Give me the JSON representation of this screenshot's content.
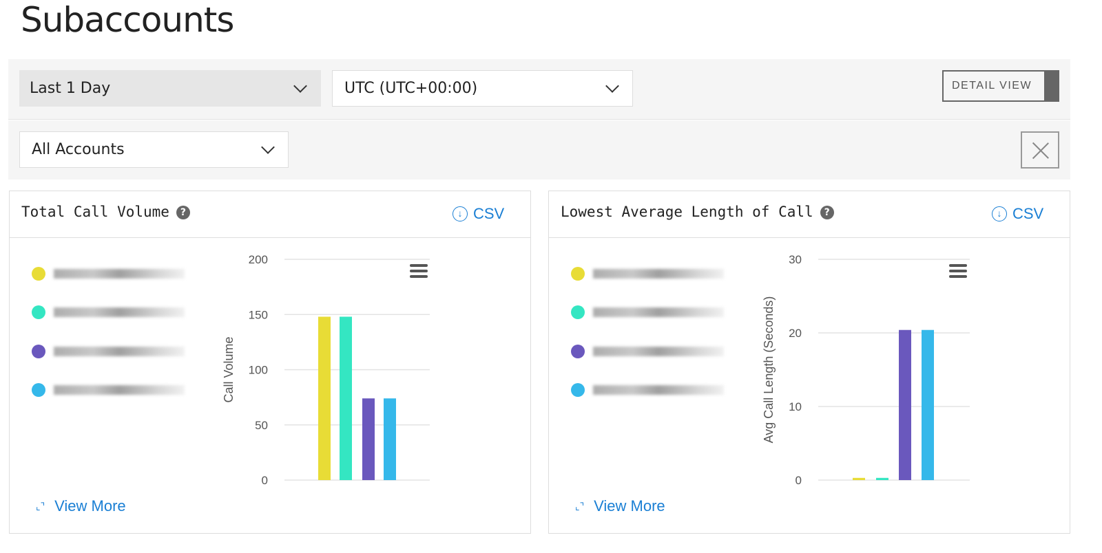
{
  "page_title": "Subaccounts",
  "filters": {
    "time_range": "Last 1 Day",
    "timezone": "UTC (UTC+00:00)",
    "accounts": "All Accounts",
    "detail_view_label": "DETAIL VIEW"
  },
  "cards": [
    {
      "title": "Total Call Volume",
      "csv_label": "CSV",
      "view_more_label": "View More"
    },
    {
      "title": "Lowest Average Length of Call",
      "csv_label": "CSV",
      "view_more_label": "View More"
    }
  ],
  "legend_colors": [
    "#e8dc36",
    "#34e6c2",
    "#6a58bd",
    "#35b8ea"
  ],
  "chart_data": [
    {
      "type": "bar",
      "title": "",
      "xlabel": "",
      "ylabel": "Call Volume",
      "ylim": [
        0,
        200
      ],
      "yticks": [
        0,
        50,
        100,
        150,
        200
      ],
      "values": [
        148,
        148,
        74,
        74
      ],
      "colors": [
        "#e8dc36",
        "#34e6c2",
        "#6a58bd",
        "#35b8ea"
      ],
      "grid": true
    },
    {
      "type": "bar",
      "title": "",
      "xlabel": "",
      "ylabel": "Avg Call Length (Seconds)",
      "ylim": [
        0,
        30
      ],
      "yticks": [
        0,
        10,
        20,
        30
      ],
      "values": [
        0.3,
        0.3,
        20.4,
        20.4
      ],
      "colors": [
        "#e8dc36",
        "#34e6c2",
        "#6a58bd",
        "#35b8ea"
      ],
      "grid": true
    }
  ]
}
